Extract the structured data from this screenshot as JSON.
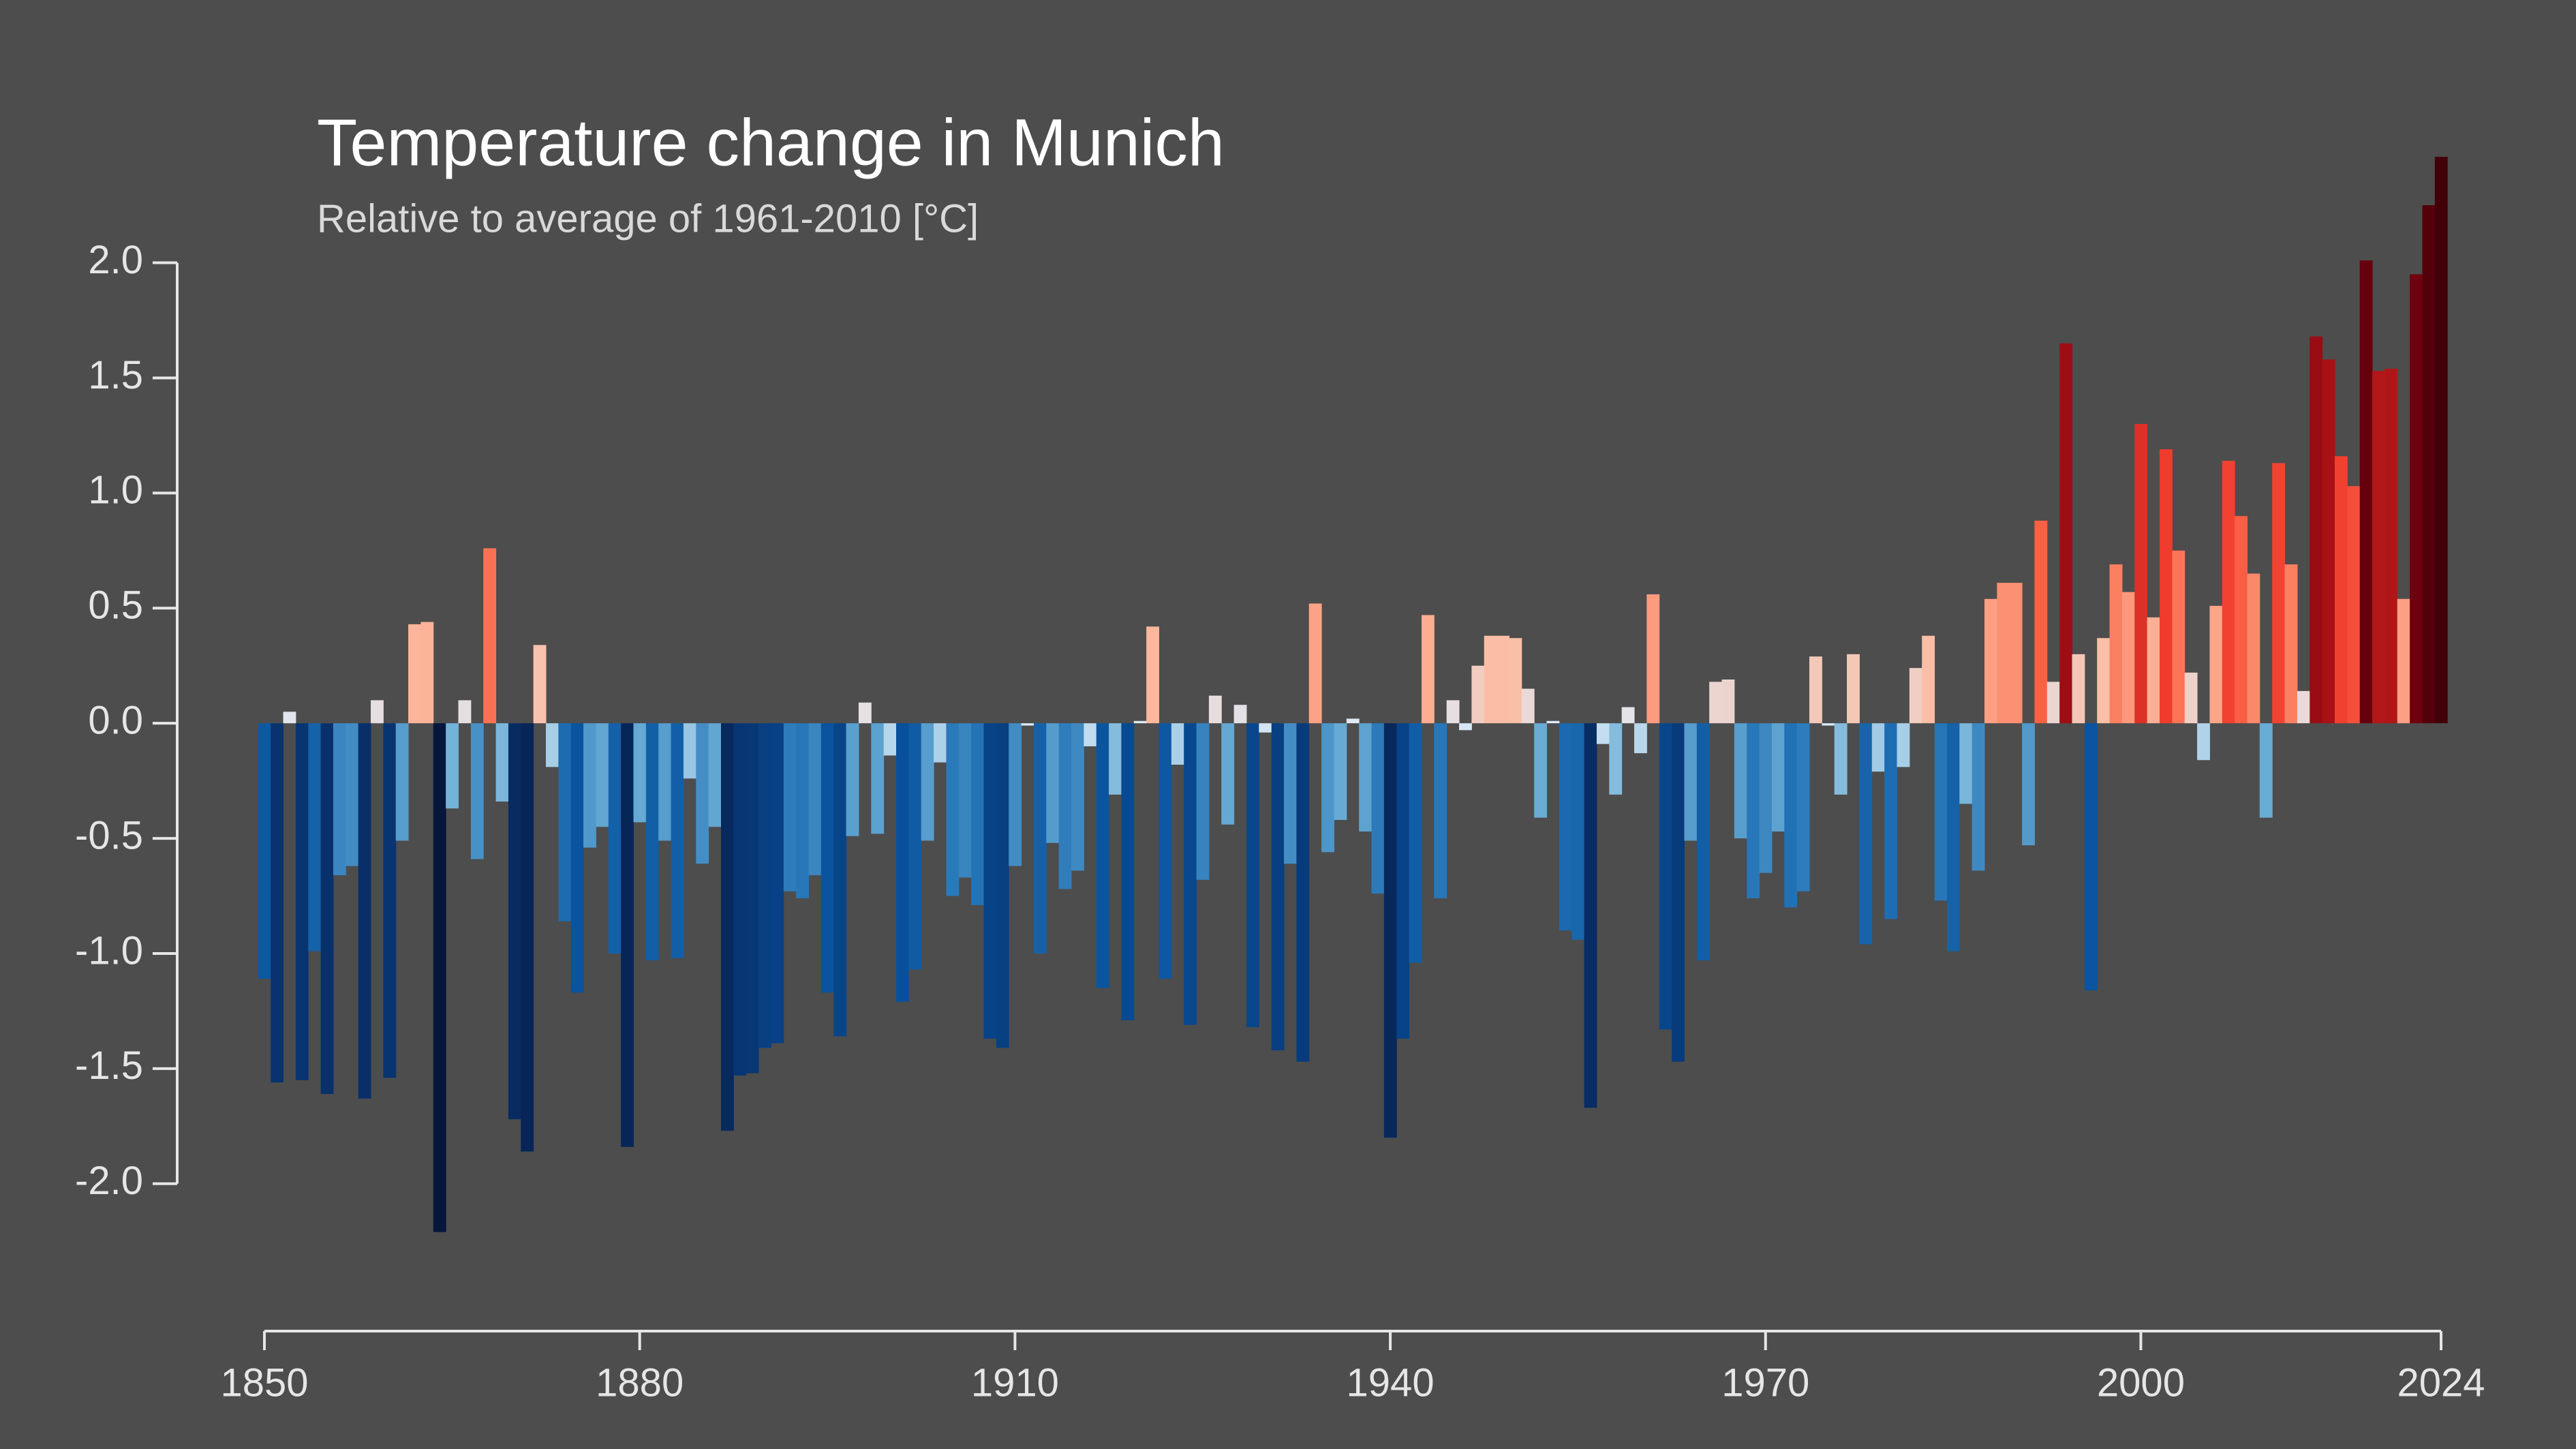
{
  "chart_data": {
    "type": "bar",
    "title": "Temperature change in Munich",
    "subtitle": "Relative to average of 1961-2010  [°C]",
    "x": [
      1850,
      1851,
      1852,
      1853,
      1854,
      1855,
      1856,
      1857,
      1858,
      1859,
      1860,
      1861,
      1862,
      1863,
      1864,
      1865,
      1866,
      1867,
      1868,
      1869,
      1870,
      1871,
      1872,
      1873,
      1874,
      1875,
      1876,
      1877,
      1878,
      1879,
      1880,
      1881,
      1882,
      1883,
      1884,
      1885,
      1886,
      1887,
      1888,
      1889,
      1890,
      1891,
      1892,
      1893,
      1894,
      1895,
      1896,
      1897,
      1898,
      1899,
      1900,
      1901,
      1902,
      1903,
      1904,
      1905,
      1906,
      1907,
      1908,
      1909,
      1910,
      1911,
      1912,
      1913,
      1914,
      1915,
      1916,
      1917,
      1918,
      1919,
      1920,
      1921,
      1922,
      1923,
      1924,
      1925,
      1926,
      1927,
      1928,
      1929,
      1930,
      1931,
      1932,
      1933,
      1934,
      1935,
      1936,
      1937,
      1938,
      1939,
      1940,
      1941,
      1942,
      1943,
      1944,
      1945,
      1946,
      1947,
      1948,
      1949,
      1950,
      1951,
      1952,
      1953,
      1954,
      1955,
      1956,
      1957,
      1958,
      1959,
      1960,
      1961,
      1962,
      1963,
      1964,
      1965,
      1966,
      1967,
      1968,
      1969,
      1970,
      1971,
      1972,
      1973,
      1974,
      1975,
      1976,
      1977,
      1978,
      1979,
      1980,
      1981,
      1982,
      1983,
      1984,
      1985,
      1986,
      1987,
      1988,
      1989,
      1990,
      1991,
      1992,
      1993,
      1994,
      1995,
      1996,
      1997,
      1998,
      1999,
      2000,
      2001,
      2002,
      2003,
      2004,
      2005,
      2006,
      2007,
      2008,
      2009,
      2010,
      2011,
      2012,
      2013,
      2014,
      2015,
      2016,
      2017,
      2018,
      2019,
      2020,
      2021,
      2022,
      2023,
      2024
    ],
    "values": [
      -1.11,
      -1.56,
      0.05,
      -1.55,
      -0.99,
      -1.61,
      -0.66,
      -0.62,
      -1.63,
      0.1,
      -1.54,
      -0.51,
      0.43,
      0.44,
      -2.21,
      -0.37,
      0.1,
      -0.59,
      0.76,
      -0.34,
      -1.72,
      -1.86,
      0.34,
      -0.19,
      -0.86,
      -1.17,
      -0.54,
      -0.45,
      -1.0,
      -1.84,
      -0.43,
      -1.03,
      -0.51,
      -1.02,
      -0.24,
      -0.61,
      -0.45,
      -1.77,
      -1.53,
      -1.52,
      -1.41,
      -1.39,
      -0.73,
      -0.76,
      -0.66,
      -1.17,
      -1.36,
      -0.49,
      0.09,
      -0.48,
      -0.14,
      -1.21,
      -1.07,
      -0.51,
      -0.17,
      -0.75,
      -0.67,
      -0.79,
      -1.37,
      -1.41,
      -0.62,
      -0.01,
      -1.0,
      -0.52,
      -0.72,
      -0.64,
      -0.1,
      -1.15,
      -0.31,
      -1.29,
      0.01,
      0.42,
      -1.11,
      -0.18,
      -1.31,
      -0.68,
      0.12,
      -0.44,
      0.08,
      -1.32,
      -0.04,
      -1.42,
      -0.61,
      -1.47,
      0.52,
      -0.56,
      -0.42,
      0.02,
      -0.47,
      -0.74,
      -1.8,
      -1.37,
      -1.04,
      0.47,
      -0.76,
      0.1,
      -0.03,
      0.25,
      0.38,
      0.38,
      0.37,
      0.15,
      -0.41,
      0.01,
      -0.9,
      -0.94,
      -1.67,
      -0.09,
      -0.31,
      0.07,
      -0.13,
      0.56,
      -1.33,
      -1.47,
      -0.51,
      -1.03,
      0.18,
      0.19,
      -0.5,
      -0.76,
      -0.65,
      -0.47,
      -0.8,
      -0.73,
      0.29,
      -0.01,
      -0.31,
      0.3,
      -0.96,
      -0.21,
      -0.85,
      -0.19,
      0.24,
      0.38,
      -0.77,
      -0.99,
      -0.35,
      -0.64,
      0.54,
      0.61,
      0.61,
      -0.53,
      0.88,
      0.18,
      1.65,
      0.3,
      -1.16,
      0.37,
      0.69,
      0.57,
      1.3,
      0.46,
      1.19,
      0.75,
      0.22,
      -0.16,
      0.51,
      1.14,
      0.9,
      0.65,
      -0.41,
      1.13,
      0.69,
      0.14,
      1.68,
      1.58,
      1.16,
      1.03,
      2.01,
      1.53,
      1.54,
      0.54,
      1.95,
      2.25,
      2.46
    ],
    "color_scale": {
      "domain": [
        -2.2,
        -1.6,
        -1.2,
        -0.8,
        -0.4,
        0,
        0.4,
        0.8,
        1.2,
        1.6,
        2.0,
        2.5
      ],
      "colors": [
        "#06173b",
        "#08306b",
        "#08519c",
        "#2171b5",
        "#6baed6",
        "#deebf7",
        "#fcbba1",
        "#fb6a4a",
        "#ef3b2c",
        "#a50f15",
        "#67000d",
        "#3f0008"
      ]
    },
    "xlim": [
      1850,
      2024
    ],
    "xticks": [
      1850,
      1880,
      1910,
      1940,
      1970,
      2000,
      2024
    ],
    "ylim": [
      -2.64,
      2.57
    ],
    "yticks": [
      {
        "value": 2,
        "label": "2.0"
      },
      {
        "value": 1.5,
        "label": "1.5"
      },
      {
        "value": 1,
        "label": "1.0"
      },
      {
        "value": 0.5,
        "label": "0.5"
      },
      {
        "value": 0,
        "label": "0.0"
      },
      {
        "value": -0.5,
        "label": "-0.5"
      },
      {
        "value": -1,
        "label": "-1.0"
      },
      {
        "value": -1.5,
        "label": "-1.5"
      },
      {
        "value": -2,
        "label": "-2.0"
      }
    ]
  }
}
